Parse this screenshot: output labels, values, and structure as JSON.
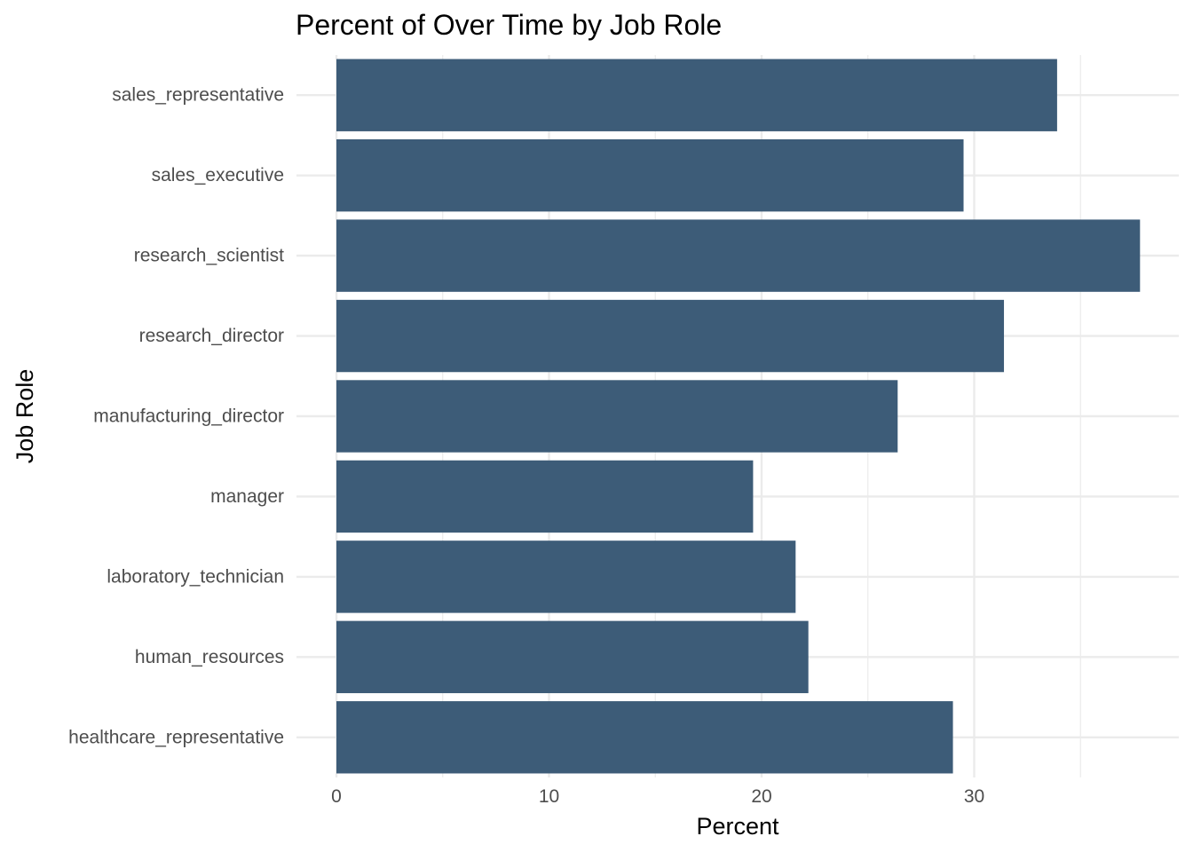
{
  "chart_data": {
    "type": "bar",
    "orientation": "horizontal",
    "title": "Percent of Over Time by Job Role",
    "xlabel": "Percent",
    "ylabel": "Job Role",
    "categories": [
      "healthcare_representative",
      "human_resources",
      "laboratory_technician",
      "manager",
      "manufacturing_director",
      "research_director",
      "research_scientist",
      "sales_executive",
      "sales_representative"
    ],
    "values": [
      29.0,
      22.2,
      21.6,
      19.6,
      26.4,
      31.4,
      37.8,
      29.5,
      33.9
    ],
    "xlim": [
      0,
      39.7
    ],
    "xticks": [
      0,
      10,
      20,
      30
    ],
    "xtick_labels": [
      "0",
      "10",
      "20",
      "30"
    ],
    "grid": true,
    "legend": "none",
    "colors": {
      "bar": "#3d5c78",
      "grid": "#ebebeb",
      "background": "#ffffff"
    }
  }
}
